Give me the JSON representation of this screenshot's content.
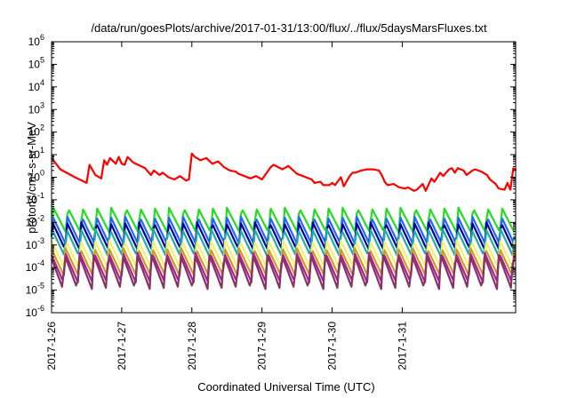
{
  "chart_data": {
    "type": "line",
    "title": "/data/run/goesPlots/archive/2017-01-31/13:00/flux/../flux/5daysMarsFluxes.txt",
    "xlabel": "Coordinated Universal Time (UTC)",
    "ylabel": "protons/cm²-s-sr-MeV",
    "yscale": "log",
    "ylim_exp": [
      -6,
      6
    ],
    "xlim_days": [
      "2017-1-26",
      "2017-1-31 14:00"
    ],
    "x_ticks": [
      "2017-1-26",
      "2017-1-27",
      "2017-1-28",
      "2017-1-29",
      "2017-1-30",
      "2017-1-31"
    ],
    "y_ticks_exp": [
      -6,
      -5,
      -4,
      -3,
      -2,
      -1,
      0,
      1,
      2,
      3,
      4,
      5,
      6
    ],
    "grid": false,
    "legend": "none",
    "red_series": {
      "color": "#ff0000",
      "points_hours_log10": [
        [
          0,
          0.85
        ],
        [
          3,
          0.35
        ],
        [
          8,
          0.0
        ],
        [
          12,
          -0.25
        ],
        [
          13,
          0.55
        ],
        [
          15,
          0.1
        ],
        [
          17,
          -0.05
        ],
        [
          18,
          0.75
        ],
        [
          19,
          0.55
        ],
        [
          20,
          0.85
        ],
        [
          22,
          0.6
        ],
        [
          23,
          0.9
        ],
        [
          24,
          0.6
        ],
        [
          25,
          0.55
        ],
        [
          26,
          0.9
        ],
        [
          28,
          0.65
        ],
        [
          32,
          0.4
        ],
        [
          34,
          0.1
        ],
        [
          35,
          0.3
        ],
        [
          37,
          0.1
        ],
        [
          38,
          0.2
        ],
        [
          40,
          0.0
        ],
        [
          42,
          -0.1
        ],
        [
          44,
          0.05
        ],
        [
          46,
          -0.15
        ],
        [
          47,
          -0.1
        ],
        [
          48,
          1.05
        ],
        [
          49,
          0.9
        ],
        [
          51,
          0.75
        ],
        [
          53,
          0.85
        ],
        [
          55,
          0.6
        ],
        [
          57,
          0.7
        ],
        [
          59,
          0.45
        ],
        [
          61,
          0.3
        ],
        [
          63,
          0.25
        ],
        [
          64,
          0.15
        ],
        [
          66,
          0.05
        ],
        [
          68,
          -0.05
        ],
        [
          70,
          0.05
        ],
        [
          72,
          -0.1
        ],
        [
          75,
          0.45
        ],
        [
          76,
          0.55
        ],
        [
          79,
          0.35
        ],
        [
          81,
          0.5
        ],
        [
          84,
          0.15
        ],
        [
          86,
          0.05
        ],
        [
          89,
          -0.1
        ],
        [
          90,
          -0.25
        ],
        [
          92,
          -0.2
        ],
        [
          93,
          -0.35
        ],
        [
          95,
          -0.35
        ],
        [
          96,
          -0.25
        ],
        [
          97,
          -0.35
        ],
        [
          99,
          0.0
        ],
        [
          100,
          -0.4
        ],
        [
          102,
          0.05
        ],
        [
          103,
          0.2
        ],
        [
          104,
          0.2
        ],
        [
          106,
          0.3
        ],
        [
          108,
          0.35
        ],
        [
          110,
          0.35
        ],
        [
          112,
          0.3
        ],
        [
          113,
          0.1
        ],
        [
          114,
          -0.2
        ],
        [
          115,
          -0.35
        ],
        [
          117,
          -0.3
        ],
        [
          119,
          -0.45
        ],
        [
          121,
          -0.5
        ],
        [
          122,
          -0.45
        ],
        [
          124,
          -0.6
        ],
        [
          125,
          -0.55
        ],
        [
          127,
          -0.3
        ],
        [
          128,
          -0.6
        ],
        [
          130,
          -0.05
        ],
        [
          131,
          -0.2
        ],
        [
          133,
          0.2
        ],
        [
          134,
          0.05
        ],
        [
          136,
          0.35
        ],
        [
          137,
          0.4
        ],
        [
          138,
          0.2
        ],
        [
          139,
          0.4
        ],
        [
          140,
          0.35
        ],
        [
          141,
          0.3
        ],
        [
          142,
          0.1
        ],
        [
          144,
          0.3
        ],
        [
          145,
          0.35
        ],
        [
          147,
          0.25
        ],
        [
          149,
          0.1
        ],
        [
          150,
          -0.1
        ],
        [
          152,
          -0.3
        ],
        [
          153,
          -0.5
        ],
        [
          155,
          -0.55
        ],
        [
          156,
          -0.25
        ],
        [
          157,
          -0.55
        ],
        [
          158,
          0.4
        ],
        [
          158.5,
          0.35
        ],
        [
          159,
          0.3
        ]
      ]
    },
    "oscillating_series": [
      {
        "color": "#22dd22",
        "base_log10": -1.9,
        "amp": 0.55
      },
      {
        "color": "#2266ff",
        "base_log10": -2.35,
        "amp": 0.6
      },
      {
        "color": "#0000aa",
        "base_log10": -2.6,
        "amp": 0.6
      },
      {
        "color": "#22aaaa",
        "base_log10": -2.9,
        "amp": 0.6
      },
      {
        "color": "#f4f06a",
        "base_log10": -3.4,
        "amp": 0.6
      },
      {
        "color": "#d09a1a",
        "base_log10": -3.75,
        "amp": 0.6
      },
      {
        "color": "#aa2299",
        "base_log10": -4.0,
        "amp": 0.65
      },
      {
        "color": "#883366",
        "base_log10": -4.2,
        "amp": 0.75
      }
    ],
    "oscillation_period_hours": 4.95
  }
}
